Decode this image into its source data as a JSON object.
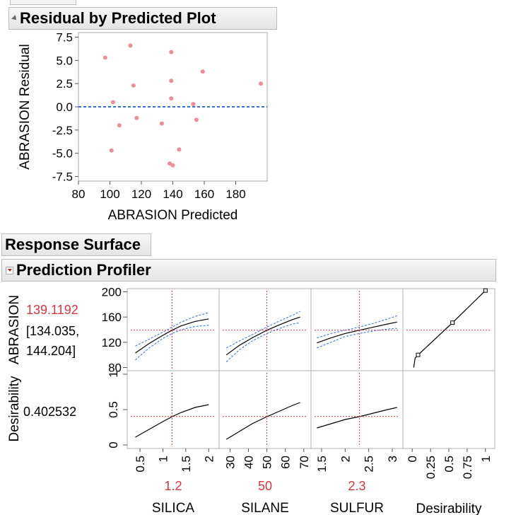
{
  "residual_panel": {
    "title": "Residual by Predicted Plot"
  },
  "response_surface": {
    "title": "Response Surface"
  },
  "profiler_panel": {
    "title": "Prediction Profiler"
  },
  "chart_data": [
    {
      "type": "scatter",
      "xlabel": "ABRASION Predicted",
      "ylabel": "ABRASION Residual",
      "xlim": [
        80,
        200
      ],
      "ylim": [
        -8,
        8
      ],
      "x_ticks": [
        "80",
        "100",
        "120",
        "140",
        "160",
        "180"
      ],
      "y_ticks": [
        "7.5",
        "5.0",
        "2.5",
        "0.0",
        "-2.5",
        "-5.0",
        "-7.5"
      ],
      "reference_line_y": 0,
      "point_color": "#f08c98",
      "line_color": "#2f6fe0",
      "points": [
        {
          "x": 97,
          "y": 5.3
        },
        {
          "x": 101,
          "y": -4.7
        },
        {
          "x": 102,
          "y": 0.5
        },
        {
          "x": 106,
          "y": -2.0
        },
        {
          "x": 113,
          "y": 6.6
        },
        {
          "x": 115,
          "y": 2.3
        },
        {
          "x": 117,
          "y": -1.2
        },
        {
          "x": 133,
          "y": -1.8
        },
        {
          "x": 138,
          "y": -6.1
        },
        {
          "x": 139,
          "y": 5.9
        },
        {
          "x": 139,
          "y": 2.8
        },
        {
          "x": 139,
          "y": 0.9
        },
        {
          "x": 140,
          "y": -6.3
        },
        {
          "x": 144,
          "y": -4.6
        },
        {
          "x": 153,
          "y": 0.3
        },
        {
          "x": 155,
          "y": -1.4
        },
        {
          "x": 159,
          "y": 3.8
        },
        {
          "x": 196,
          "y": 2.5
        }
      ]
    },
    {
      "type": "line",
      "subtype": "prediction_profiler",
      "responses": [
        {
          "name": "ABRASION",
          "current": "139.1192",
          "ci_low": "[134.035,",
          "ci_high": "144.204]",
          "ylim": [
            75,
            205
          ],
          "y_ticks": [
            "200",
            "160",
            "120",
            "80"
          ],
          "current_value": 139.12
        },
        {
          "name": "Desirability",
          "current": "0.402532",
          "ylim": [
            -0.05,
            1.05
          ],
          "y_ticks": [
            "1",
            "0.5",
            "0"
          ],
          "current_value": 0.4025
        }
      ],
      "factors": [
        {
          "name": "SILICA",
          "current": "1.2",
          "current_value": 1.2,
          "xlim": [
            0.3,
            2.15
          ],
          "x_ticks": [
            "0.5",
            "1",
            "1.5",
            "2"
          ],
          "x": [
            0.4,
            0.7,
            1.0,
            1.2,
            1.4,
            1.7,
            2.0
          ],
          "abrasion": [
            103,
            118,
            131,
            139.1,
            146,
            153,
            157
          ],
          "ci_lower": [
            92,
            111,
            126,
            134.0,
            140,
            145,
            147
          ],
          "ci_upper": [
            114,
            125,
            136,
            144.2,
            152,
            161,
            167
          ],
          "desirability": [
            0.11,
            0.22,
            0.33,
            0.4,
            0.46,
            0.53,
            0.57
          ]
        },
        {
          "name": "SILANE",
          "current": "50",
          "current_value": 50,
          "xlim": [
            26,
            72
          ],
          "x_ticks": [
            "30",
            "40",
            "50",
            "60",
            "70"
          ],
          "x": [
            28,
            35,
            42,
            50,
            57,
            64,
            68
          ],
          "abrasion": [
            100,
            115,
            127,
            139.1,
            148,
            156,
            160
          ],
          "ci_lower": [
            89,
            108,
            122,
            134.0,
            142,
            149,
            151
          ],
          "ci_upper": [
            111,
            122,
            132,
            144.2,
            154,
            163,
            169
          ],
          "desirability": [
            0.08,
            0.19,
            0.3,
            0.4,
            0.48,
            0.56,
            0.6
          ]
        },
        {
          "name": "SULFUR",
          "current": "2.3",
          "current_value": 2.3,
          "xlim": [
            1.35,
            3.15
          ],
          "x_ticks": [
            "1.5",
            "2",
            "2.5",
            "3"
          ],
          "x": [
            1.4,
            1.7,
            2.0,
            2.3,
            2.6,
            2.9,
            3.1
          ],
          "abrasion": [
            119,
            127,
            134,
            139.1,
            144,
            149,
            152
          ],
          "ci_lower": [
            111,
            120,
            129,
            134.0,
            138,
            141,
            142
          ],
          "ci_upper": [
            127,
            134,
            139,
            144.2,
            150,
            157,
            162
          ],
          "desirability": [
            0.24,
            0.3,
            0.36,
            0.4,
            0.45,
            0.5,
            0.53
          ]
        }
      ],
      "desirability_function": {
        "label": "Desirability",
        "xlim": [
          -0.05,
          1.05
        ],
        "x_ticks": [
          "0",
          "0.25",
          "0.5",
          "0.75",
          "1"
        ],
        "points": [
          [
            0.02,
            80
          ],
          [
            0.04,
            95
          ],
          [
            0.08,
            100
          ],
          [
            0.55,
            151
          ],
          [
            1.0,
            202
          ]
        ],
        "handles": [
          [
            0.08,
            100
          ],
          [
            0.55,
            151
          ],
          [
            1.0,
            202
          ]
        ]
      },
      "colors": {
        "current": "#d8363f",
        "ci": "#2f6fe0",
        "curve": "#000000"
      }
    }
  ]
}
